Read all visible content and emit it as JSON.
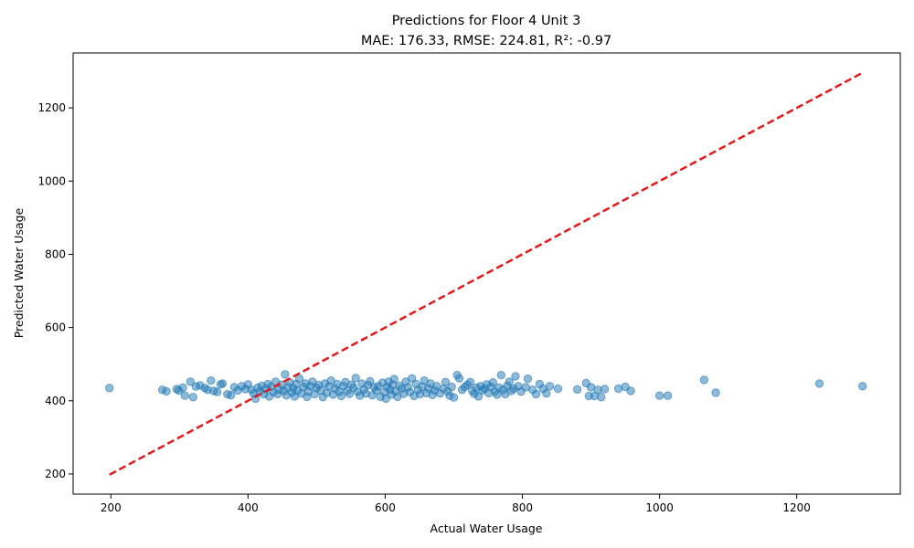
{
  "chart_data": {
    "type": "scatter",
    "title": "Predictions for Floor 4 Unit 3",
    "subtitle": "MAE: 176.33, RMSE: 224.81, R²: -0.97",
    "xlabel": "Actual Water Usage",
    "ylabel": "Predicted Water Usage",
    "xlim": [
      145,
      1351
    ],
    "ylim": [
      145,
      1350
    ],
    "xticks": [
      "200",
      "400",
      "600",
      "800",
      "1000",
      "1200"
    ],
    "yticks": [
      "200",
      "400",
      "600",
      "800",
      "1000",
      "1200"
    ],
    "x_tick_values": [
      200,
      400,
      600,
      800,
      1000,
      1200
    ],
    "y_tick_values": [
      200,
      400,
      600,
      800,
      1000,
      1200
    ],
    "grid": false,
    "reference_line": {
      "from": [
        198,
        198
      ],
      "to": [
        1296,
        1296
      ],
      "color": "#e31a1c",
      "style": "dashed"
    },
    "colors": {
      "points": "#1f77b4",
      "reference_line": "#e31a1c"
    },
    "points": [
      [
        198,
        435
      ],
      [
        275,
        430
      ],
      [
        281,
        426
      ],
      [
        296,
        432
      ],
      [
        299,
        428
      ],
      [
        305,
        436
      ],
      [
        308,
        414
      ],
      [
        316,
        452
      ],
      [
        320,
        410
      ],
      [
        324,
        439
      ],
      [
        330,
        442
      ],
      [
        337,
        435
      ],
      [
        341,
        430
      ],
      [
        346,
        455
      ],
      [
        350,
        427
      ],
      [
        355,
        424
      ],
      [
        360,
        445
      ],
      [
        363,
        447
      ],
      [
        370,
        418
      ],
      [
        375,
        415
      ],
      [
        380,
        437
      ],
      [
        385,
        428
      ],
      [
        391,
        440
      ],
      [
        396,
        432
      ],
      [
        400,
        445
      ],
      [
        405,
        430
      ],
      [
        408,
        420
      ],
      [
        411,
        406
      ],
      [
        414,
        436
      ],
      [
        417,
        425
      ],
      [
        420,
        441
      ],
      [
        423,
        418
      ],
      [
        426,
        433
      ],
      [
        429,
        446
      ],
      [
        431,
        412
      ],
      [
        434,
        438
      ],
      [
        437,
        424
      ],
      [
        440,
        452
      ],
      [
        443,
        418
      ],
      [
        446,
        431
      ],
      [
        449,
        444
      ],
      [
        452,
        427
      ],
      [
        454,
        472
      ],
      [
        456,
        415
      ],
      [
        458,
        437
      ],
      [
        461,
        450
      ],
      [
        464,
        423
      ],
      [
        466,
        434
      ],
      [
        468,
        412
      ],
      [
        470,
        446
      ],
      [
        472,
        428
      ],
      [
        475,
        460
      ],
      [
        478,
        420
      ],
      [
        481,
        438
      ],
      [
        484,
        447
      ],
      [
        486,
        411
      ],
      [
        488,
        426
      ],
      [
        491,
        440
      ],
      [
        494,
        452
      ],
      [
        497,
        418
      ],
      [
        500,
        435
      ],
      [
        503,
        443
      ],
      [
        506,
        428
      ],
      [
        509,
        410
      ],
      [
        512,
        447
      ],
      [
        515,
        422
      ],
      [
        518,
        439
      ],
      [
        521,
        455
      ],
      [
        524,
        417
      ],
      [
        527,
        433
      ],
      [
        530,
        446
      ],
      [
        533,
        425
      ],
      [
        536,
        413
      ],
      [
        539,
        440
      ],
      [
        542,
        451
      ],
      [
        545,
        428
      ],
      [
        548,
        419
      ],
      [
        551,
        444
      ],
      [
        554,
        436
      ],
      [
        557,
        462
      ],
      [
        560,
        425
      ],
      [
        563,
        414
      ],
      [
        566,
        447
      ],
      [
        569,
        431
      ],
      [
        572,
        420
      ],
      [
        575,
        443
      ],
      [
        578,
        453
      ],
      [
        581,
        415
      ],
      [
        584,
        437
      ],
      [
        587,
        428
      ],
      [
        590,
        440
      ],
      [
        593,
        411
      ],
      [
        596,
        449
      ],
      [
        599,
        424
      ],
      [
        601,
        406
      ],
      [
        603,
        438
      ],
      [
        605,
        452
      ],
      [
        607,
        430
      ],
      [
        609,
        417
      ],
      [
        611,
        444
      ],
      [
        613,
        459
      ],
      [
        615,
        426
      ],
      [
        618,
        411
      ],
      [
        621,
        441
      ],
      [
        624,
        433
      ],
      [
        627,
        419
      ],
      [
        630,
        452
      ],
      [
        633,
        437
      ],
      [
        636,
        424
      ],
      [
        639,
        461
      ],
      [
        642,
        413
      ],
      [
        645,
        446
      ],
      [
        648,
        430
      ],
      [
        651,
        418
      ],
      [
        654,
        439
      ],
      [
        657,
        455
      ],
      [
        660,
        421
      ],
      [
        663,
        434
      ],
      [
        666,
        447
      ],
      [
        669,
        416
      ],
      [
        672,
        428
      ],
      [
        675,
        440
      ],
      [
        680,
        420
      ],
      [
        685,
        433
      ],
      [
        688,
        451
      ],
      [
        691,
        426
      ],
      [
        694,
        414
      ],
      [
        697,
        438
      ],
      [
        700,
        409
      ],
      [
        705,
        470
      ],
      [
        708,
        461
      ],
      [
        712,
        430
      ],
      [
        716,
        438
      ],
      [
        720,
        444
      ],
      [
        724,
        451
      ],
      [
        727,
        427
      ],
      [
        730,
        419
      ],
      [
        733,
        436
      ],
      [
        736,
        412
      ],
      [
        739,
        440
      ],
      [
        742,
        428
      ],
      [
        745,
        433
      ],
      [
        748,
        445
      ],
      [
        751,
        421
      ],
      [
        754,
        438
      ],
      [
        757,
        450
      ],
      [
        760,
        425
      ],
      [
        763,
        417
      ],
      [
        766,
        436
      ],
      [
        769,
        470
      ],
      [
        772,
        430
      ],
      [
        775,
        418
      ],
      [
        778,
        441
      ],
      [
        781,
        452
      ],
      [
        784,
        427
      ],
      [
        787,
        433
      ],
      [
        790,
        467
      ],
      [
        794,
        440
      ],
      [
        798,
        425
      ],
      [
        805,
        437
      ],
      [
        808,
        460
      ],
      [
        815,
        430
      ],
      [
        820,
        418
      ],
      [
        825,
        446
      ],
      [
        830,
        433
      ],
      [
        835,
        420
      ],
      [
        840,
        440
      ],
      [
        852,
        433
      ],
      [
        880,
        431
      ],
      [
        893,
        448
      ],
      [
        897,
        413
      ],
      [
        900,
        437
      ],
      [
        905,
        413
      ],
      [
        910,
        430
      ],
      [
        915,
        410
      ],
      [
        920,
        432
      ],
      [
        940,
        433
      ],
      [
        950,
        438
      ],
      [
        958,
        427
      ],
      [
        1000,
        414
      ],
      [
        1012,
        414
      ],
      [
        1065,
        457
      ],
      [
        1082,
        422
      ],
      [
        1233,
        447
      ],
      [
        1296,
        440
      ]
    ]
  }
}
